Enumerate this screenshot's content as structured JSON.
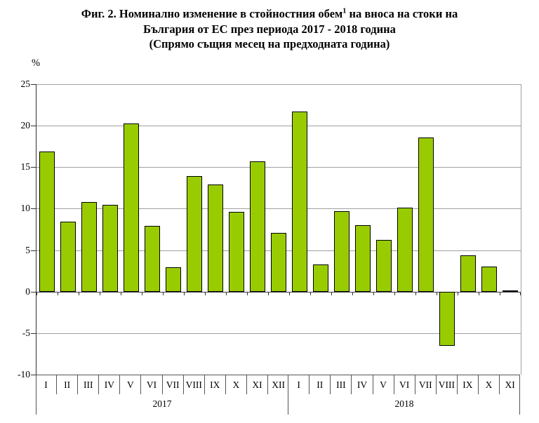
{
  "title": {
    "line1_pre": "Фиг. 2. Номинално изменение в стойностния обем",
    "line1_sup": "1",
    "line1_post": " на вноса на стоки на",
    "line2": "България от ЕС през периода 2017 - 2018 година",
    "line3": "(Спрямо същия месец на предходната година)"
  },
  "chart_data": {
    "type": "bar",
    "title": "Фиг. 2. Номинално изменение в стойностния обем(1) на вноса на стоки на България от ЕС през периода 2017 - 2018 година (Спрямо същия месец на предходната година)",
    "ylabel": "%",
    "xlabel": "",
    "ylim": [
      -10,
      25
    ],
    "ytick_step": 5,
    "y_ticks": [
      25,
      20,
      15,
      10,
      5,
      0,
      -5,
      -10
    ],
    "grid": true,
    "legend": "none",
    "bar_color": "#99CC00",
    "bar_border_color": "#000000",
    "groups": [
      {
        "year": "2017",
        "months": [
          "I",
          "II",
          "III",
          "IV",
          "V",
          "VI",
          "VII",
          "VIII",
          "IX",
          "X",
          "XI",
          "XII"
        ],
        "values": [
          16.9,
          8.4,
          10.8,
          10.5,
          20.3,
          7.9,
          2.9,
          13.9,
          12.9,
          9.6,
          15.7,
          7.1
        ]
      },
      {
        "year": "2018",
        "months": [
          "I",
          "II",
          "III",
          "IV",
          "V",
          "VI",
          "VII",
          "VIII",
          "IX",
          "X",
          "XI"
        ],
        "values": [
          21.7,
          3.3,
          9.7,
          8.0,
          6.2,
          10.1,
          18.6,
          -6.5,
          4.4,
          3.0,
          0.0
        ]
      }
    ]
  }
}
